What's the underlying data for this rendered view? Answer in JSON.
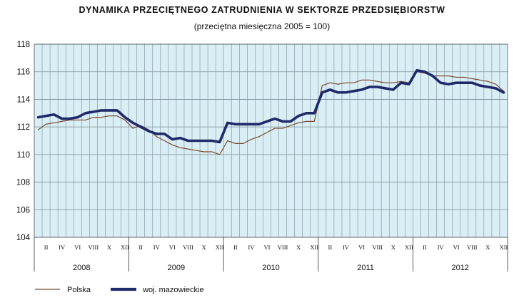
{
  "chart_data": {
    "type": "line",
    "title": "DYNAMIKA PRZECIĘTNEGO ZATRUDNIENIA W SEKTORZE PRZEDSIĘBIORSTW",
    "subtitle": "(przeciętna miesięczna 2005 = 100)",
    "ylim": [
      104,
      118
    ],
    "yticks": [
      104,
      106,
      108,
      110,
      112,
      114,
      116,
      118
    ],
    "grid": true,
    "legend_position": "bottom-left",
    "month_labels": [
      "II",
      "IV",
      "VI",
      "VIII",
      "X",
      "XII"
    ],
    "years": [
      "2008",
      "2009",
      "2010",
      "2011",
      "2012"
    ],
    "colors": {
      "plot_background": "#d9eef5",
      "grid": "#7d8f98",
      "polska": "#7a4a2e",
      "mazowieckie": "#1f2a6b"
    },
    "series": [
      {
        "name": "Polska",
        "key": "polska",
        "values": [
          111.8,
          112.2,
          112.3,
          112.4,
          112.5,
          112.5,
          112.5,
          112.7,
          112.7,
          112.8,
          112.8,
          112.5,
          111.9,
          112.1,
          111.8,
          111.3,
          111.0,
          110.7,
          110.5,
          110.4,
          110.3,
          110.2,
          110.2,
          110.0,
          111.0,
          110.8,
          110.8,
          111.1,
          111.3,
          111.6,
          111.9,
          111.9,
          112.1,
          112.3,
          112.4,
          112.4,
          115.0,
          115.2,
          115.1,
          115.2,
          115.2,
          115.4,
          115.4,
          115.3,
          115.2,
          115.2,
          115.3,
          115.2,
          116.0,
          115.9,
          115.7,
          115.7,
          115.7,
          115.6,
          115.6,
          115.5,
          115.4,
          115.3,
          115.1,
          114.6
        ]
      },
      {
        "name": "woj. mazowieckie",
        "key": "mazowieckie",
        "values": [
          112.7,
          112.8,
          112.9,
          112.6,
          112.6,
          112.7,
          113.0,
          113.1,
          113.2,
          113.2,
          113.2,
          112.7,
          112.3,
          112.0,
          111.7,
          111.5,
          111.5,
          111.1,
          111.2,
          111.0,
          111.0,
          111.0,
          111.0,
          110.9,
          112.3,
          112.2,
          112.2,
          112.2,
          112.2,
          112.4,
          112.6,
          112.4,
          112.4,
          112.8,
          113.0,
          113.0,
          114.5,
          114.7,
          114.5,
          114.5,
          114.6,
          114.7,
          114.9,
          114.9,
          114.8,
          114.7,
          115.2,
          115.1,
          116.1,
          116.0,
          115.7,
          115.2,
          115.1,
          115.2,
          115.2,
          115.2,
          115.0,
          114.9,
          114.8,
          114.5
        ]
      }
    ]
  }
}
